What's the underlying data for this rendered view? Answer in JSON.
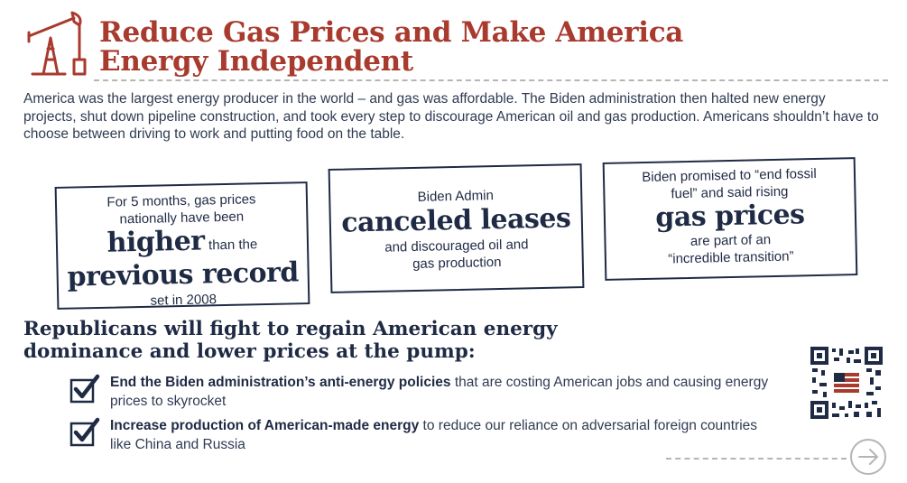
{
  "header": {
    "title_line1": "Reduce Gas Prices and Make America",
    "title_line2": "Energy Independent",
    "icon": "oil-pump-icon",
    "accent_color": "#a83a2e"
  },
  "intro": "America was the largest energy producer in the world – and gas was affordable. The Biden administration then halted new energy projects, shut down pipeline construction, and took every step to discourage American oil and gas production. Americans shouldn’t have to choose between driving to work and putting food on the table.",
  "boxes": [
    {
      "line1": "For 5 months, gas prices",
      "line2": "nationally have been",
      "big1": "higher",
      "after_big1": "than the",
      "big2": "previous record",
      "line_end": "set in 2008"
    },
    {
      "line1": "Biden Admin",
      "big": "canceled leases",
      "line2": "and discouraged oil and",
      "line3": "gas production"
    },
    {
      "line1": "Biden promised to “end fossil",
      "line2": "fuel” and said rising",
      "big": "gas prices",
      "line3": "are part of an",
      "line4": "“incredible transition”"
    }
  ],
  "subhead_line1": "Republicans will fight to regain American energy",
  "subhead_line2": "dominance and lower prices at the pump:",
  "checklist": [
    {
      "bold": "End the Biden administration’s anti-energy policies",
      "rest": " that are costing American jobs and causing energy prices to skyrocket"
    },
    {
      "bold": "Increase production of American-made energy",
      "rest": " to reduce our reliance on adversarial foreign countries like China and Russia"
    }
  ],
  "icons": {
    "qr": "qr-code-icon",
    "next": "arrow-right-icon",
    "check": "checkbox-checked-icon"
  },
  "colors": {
    "navy": "#1f2a44",
    "red": "#a83a2e",
    "gray": "#b5b5b5"
  }
}
